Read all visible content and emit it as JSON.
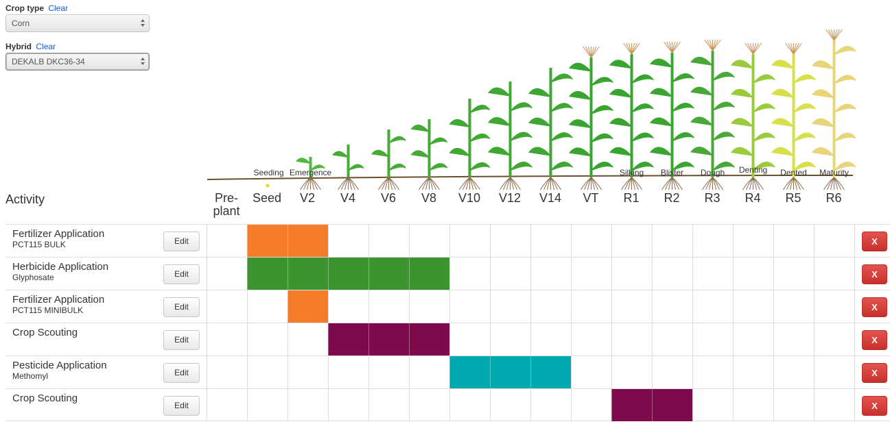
{
  "crop_type": {
    "label": "Crop type",
    "clear": "Clear",
    "value": "Corn"
  },
  "hybrid": {
    "label": "Hybrid",
    "clear": "Clear",
    "value": "DEKALB DKC36-34"
  },
  "activity_header": "Activity",
  "stages": [
    "Pre-\nplant",
    "Seed",
    "V2",
    "V4",
    "V6",
    "V8",
    "V10",
    "V12",
    "V14",
    "VT",
    "R1",
    "R2",
    "R3",
    "R4",
    "R5",
    "R6"
  ],
  "stage_sublabels": [
    "",
    "Seeding",
    "Emergence",
    "",
    "",
    "",
    "",
    "",
    "",
    "",
    "Silking",
    "Blister",
    "Dough",
    "Denting",
    "Dented",
    "Maturity"
  ],
  "colors": {
    "fertilizer": "#f47c2a",
    "herbicide": "#3b942f",
    "scouting": "#7d0b4b",
    "pesticide": "#00a9b0",
    "delete": "#d9403a"
  },
  "edit_label": "Edit",
  "delete_label": "X",
  "activities": [
    {
      "name": "Fertilizer Application",
      "detail": "PCT115 BULK",
      "color": "#f47c2a",
      "start": 1,
      "end": 2
    },
    {
      "name": "Herbicide Application",
      "detail": "Glyphosate",
      "color": "#3b942f",
      "start": 1,
      "end": 5
    },
    {
      "name": "Fertilizer Application",
      "detail": "PCT115 MINIBULK",
      "color": "#f47c2a",
      "start": 2,
      "end": 2
    },
    {
      "name": "Crop Scouting",
      "detail": "",
      "color": "#7d0b4b",
      "start": 3,
      "end": 5
    },
    {
      "name": "Pesticide Application",
      "detail": "Methomyl",
      "color": "#00a9b0",
      "start": 6,
      "end": 8
    },
    {
      "name": "Crop Scouting",
      "detail": "",
      "color": "#7d0b4b",
      "start": 10,
      "end": 11
    }
  ]
}
